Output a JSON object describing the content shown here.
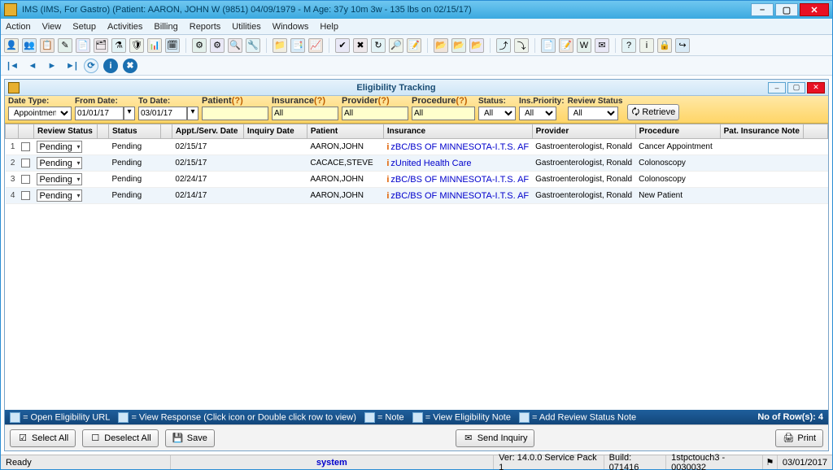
{
  "title": "IMS (IMS, For Gastro)    (Patient: AARON, JOHN W (9851) 04/09/1979 - M Age: 37y 10m 3w - 135 lbs on 02/15/17)",
  "menu": [
    "Action",
    "View",
    "Setup",
    "Activities",
    "Billing",
    "Reports",
    "Utilities",
    "Windows",
    "Help"
  ],
  "inner_title": "Eligibility Tracking",
  "filters": {
    "date_type": {
      "label": "Date Type:",
      "value": "Appointment Da"
    },
    "from_date": {
      "label": "From Date:",
      "value": "01/01/17"
    },
    "to_date": {
      "label": "To Date:",
      "value": "03/01/17"
    },
    "patient": {
      "label": "Patient",
      "q": "(?)",
      "value": ""
    },
    "insurance": {
      "label": "Insurance",
      "q": "(?)",
      "value": "All"
    },
    "provider": {
      "label": "Provider",
      "q": "(?)",
      "value": "All"
    },
    "procedure": {
      "label": "Procedure",
      "q": "(?)",
      "value": "All"
    },
    "status": {
      "label": "Status:",
      "value": "All"
    },
    "ins_priority": {
      "label": "Ins.Priority:",
      "value": "All"
    },
    "review_status": {
      "label": "Review Status",
      "value": "All"
    },
    "retrieve": "Retrieve"
  },
  "columns": [
    "",
    "",
    "Review Status",
    "",
    "Status",
    "",
    "Appt./Serv. Date",
    "Inquiry Date",
    "Patient",
    "Insurance",
    "Provider",
    "Procedure",
    "Pat. Insurance Note",
    ""
  ],
  "rows": [
    {
      "n": "1",
      "review": "Pending",
      "status": "Pending",
      "date": "02/15/17",
      "inq": "",
      "patient": "AARON,JOHN",
      "ins": "BC/BS OF MINNESOTA-I.T.S. AF",
      "provider": "Gastroenterologist, Ronald",
      "proc": "Cancer Appointment"
    },
    {
      "n": "2",
      "review": "Pending",
      "status": "Pending",
      "date": "02/15/17",
      "inq": "",
      "patient": "CACACE,STEVE",
      "ins": "United Health Care",
      "provider": "Gastroenterologist, Ronald",
      "proc": "Colonoscopy"
    },
    {
      "n": "3",
      "review": "Pending",
      "status": "Pending",
      "date": "02/24/17",
      "inq": "",
      "patient": "AARON,JOHN",
      "ins": "BC/BS OF MINNESOTA-I.T.S. AF",
      "provider": "Gastroenterologist, Ronald",
      "proc": "Colonoscopy"
    },
    {
      "n": "4",
      "review": "Pending",
      "status": "Pending",
      "date": "02/14/17",
      "inq": "",
      "patient": "AARON,JOHN",
      "ins": "BC/BS OF MINNESOTA-I.T.S. AF",
      "provider": "Gastroenterologist, Ronald",
      "proc": "New Patient"
    }
  ],
  "legend": {
    "l1": "= Open Eligibility URL",
    "l2": "= View Response (Click icon or Double click row to view)",
    "l3": "= Note",
    "l4": "= View Eligibility Note",
    "l5": "= Add Review Status Note",
    "rows_label": "No of Row(s):",
    "rows_value": "4"
  },
  "buttons": {
    "select_all": "Select All",
    "deselect_all": "Deselect All",
    "save": "Save",
    "send_inquiry": "Send Inquiry",
    "print": "Print"
  },
  "status": {
    "ready": "Ready",
    "system": "system",
    "ver": "Ver: 14.0.0 Service Pack 1",
    "build": "Build: 071416",
    "host": "1stpctouch3 - 0030032",
    "date": "03/01/2017"
  },
  "toolbar_colors": [
    "#e8b030",
    "#2a8dd4",
    "#e06000",
    "#7db87d",
    "#b07dd4",
    "#d47d7d",
    "#7dd4d4",
    "#d4d47d"
  ]
}
